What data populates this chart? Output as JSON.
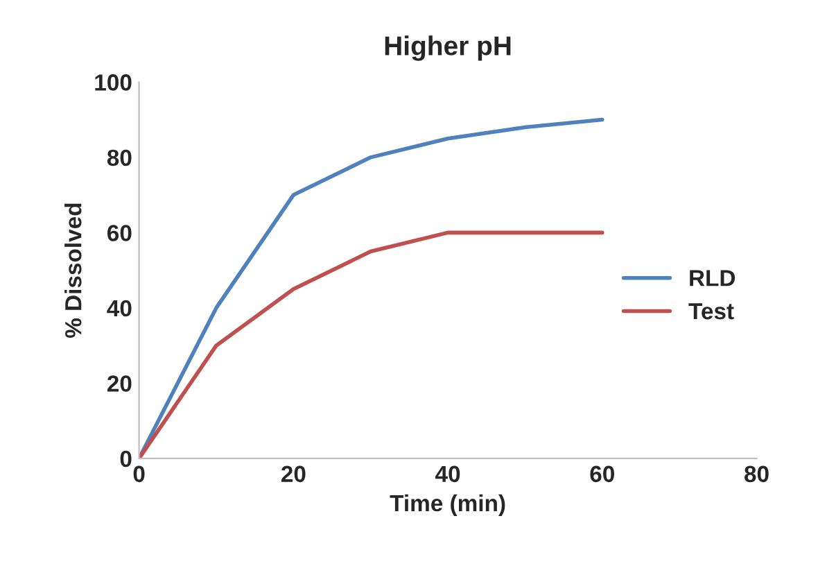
{
  "chart_data": {
    "type": "line",
    "title": "Higher pH",
    "xlabel": "Time (min)",
    "ylabel": "% Dissolved",
    "x": [
      0,
      10,
      20,
      30,
      40,
      50,
      60
    ],
    "series": [
      {
        "name": "RLD",
        "color": "#4f81bd",
        "values": [
          0,
          40,
          70,
          80,
          85,
          88,
          90
        ]
      },
      {
        "name": "Test",
        "color": "#c0504d",
        "values": [
          0,
          30,
          45,
          55,
          60,
          60,
          60
        ]
      }
    ],
    "xlim": [
      0,
      80
    ],
    "xticks": [
      0,
      20,
      40,
      60,
      80
    ],
    "ylim": [
      0,
      100
    ],
    "yticks": [
      0,
      20,
      40,
      60,
      80,
      100
    ],
    "grid": false,
    "legend": "right",
    "marker": "none",
    "line_style": "solid"
  }
}
